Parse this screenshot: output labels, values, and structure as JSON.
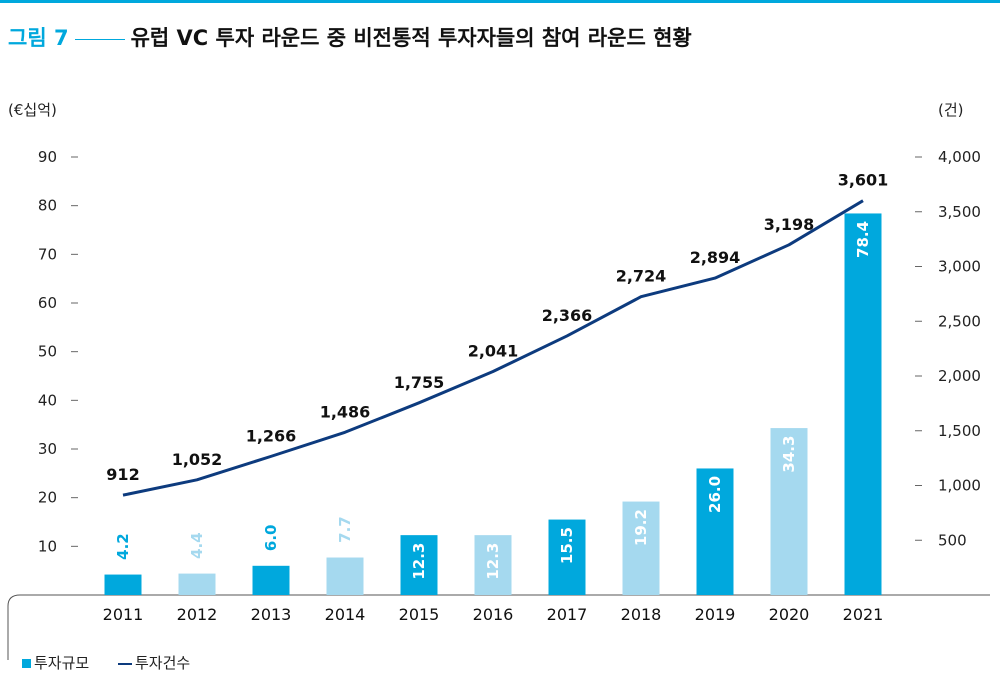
{
  "title": {
    "figure_label": "그림 7",
    "text": "유럽 VC 투자 라운드 중 비전통적 투자자들의 참여 라운드 현황"
  },
  "colors": {
    "accent": "#00a8dd",
    "bar_dark": "#00a8dd",
    "bar_light": "#a5d9ef",
    "line": "#0d3b7e"
  },
  "chart_data": {
    "type": "bar",
    "categories": [
      "2011",
      "2012",
      "2013",
      "2014",
      "2015",
      "2016",
      "2017",
      "2018",
      "2019",
      "2020",
      "2021"
    ],
    "ylabel_left": "(€십억)",
    "ylabel_right": "(건)",
    "ylim_left": [
      0,
      90
    ],
    "ylim_right": [
      0,
      4000
    ],
    "yticks_left": [
      "10",
      "20",
      "30",
      "40",
      "50",
      "60",
      "70",
      "80",
      "90"
    ],
    "yticks_right": [
      "500",
      "1,000",
      "1,500",
      "2,000",
      "2,500",
      "3,000",
      "3,500",
      "4,000"
    ],
    "series": [
      {
        "name": "투자규모",
        "type": "bar",
        "axis": "left",
        "values": [
          4.2,
          4.4,
          6.0,
          7.7,
          12.3,
          12.3,
          15.5,
          19.2,
          26.0,
          34.3,
          78.4
        ],
        "labels": [
          "4.2",
          "4.4",
          "6.0",
          "7.7",
          "12.3",
          "12.3",
          "15.5",
          "19.2",
          "26.0",
          "34.3",
          "78.4"
        ],
        "shade": [
          "dark",
          "light",
          "dark",
          "light",
          "dark",
          "light",
          "dark",
          "light",
          "dark",
          "light",
          "dark"
        ]
      },
      {
        "name": "투자건수",
        "type": "line",
        "axis": "right",
        "values": [
          912,
          1052,
          1266,
          1486,
          1755,
          2041,
          2366,
          2724,
          2894,
          3198,
          3601
        ],
        "labels": [
          "912",
          "1,052",
          "1,266",
          "1,486",
          "1,755",
          "2,041",
          "2,366",
          "2,724",
          "2,894",
          "3,198",
          "3,601"
        ]
      }
    ],
    "grid": false,
    "legend": "bottom-left"
  },
  "legend": {
    "bar_label": "투자규모",
    "line_label": "투자건수"
  }
}
